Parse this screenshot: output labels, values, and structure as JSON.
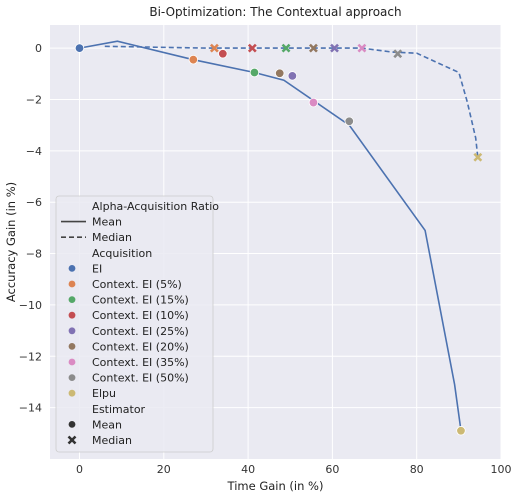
{
  "chart_data": {
    "type": "line",
    "title": "Bi-Optimization: The Contextual approach",
    "xlabel": "Time Gain (in %)",
    "ylabel": "Accuracy Gain (in %)",
    "xlim": [
      -7,
      100
    ],
    "ylim": [
      -16.0,
      0.9
    ],
    "xticks": [
      0,
      20,
      40,
      60,
      80,
      100
    ],
    "yticks": [
      0,
      -2,
      -4,
      -6,
      -8,
      -10,
      -12,
      -14
    ],
    "grid": true,
    "background": "#eaeaf2",
    "series": [
      {
        "name": "Mean",
        "style": "solid",
        "color": "#4c72b0",
        "points": [
          [
            0,
            0.0
          ],
          [
            9,
            0.27
          ],
          [
            27,
            -0.45
          ],
          [
            41.5,
            -0.95
          ],
          [
            48.5,
            -1.25
          ],
          [
            64,
            -3.0
          ],
          [
            82,
            -7.1
          ],
          [
            89,
            -13.1
          ],
          [
            90.5,
            -14.9
          ]
        ]
      },
      {
        "name": "Median",
        "style": "dashed",
        "color": "#4c72b0",
        "points": [
          [
            6,
            0.07
          ],
          [
            30,
            0.0
          ],
          [
            67,
            0.0
          ],
          [
            74,
            -0.15
          ],
          [
            80,
            -0.2
          ],
          [
            90,
            -0.95
          ],
          [
            92,
            -2.1
          ],
          [
            94,
            -3.5
          ],
          [
            94.5,
            -4.25
          ]
        ]
      }
    ],
    "scatter": [
      {
        "acquisition": "EI",
        "color": "#4c72b0",
        "mean": [
          0,
          0.0
        ],
        "median": null
      },
      {
        "acquisition": "Context. EI (5%)",
        "color": "#dd8452",
        "mean": [
          27,
          -0.45
        ],
        "median": [
          32,
          0.0
        ]
      },
      {
        "acquisition": "Context. EI (15%)",
        "color": "#55a868",
        "mean": [
          41.5,
          -0.95
        ],
        "median": [
          49,
          0.0
        ]
      },
      {
        "acquisition": "Context. EI (10%)",
        "color": "#c44e52",
        "mean": [
          34,
          -0.22
        ],
        "median": [
          41,
          0.0
        ]
      },
      {
        "acquisition": "Context. EI (25%)",
        "color": "#8172b3",
        "mean": [
          50.5,
          -1.08
        ],
        "median": [
          60.5,
          0.0
        ]
      },
      {
        "acquisition": "Context. EI (20%)",
        "color": "#937860",
        "mean": [
          47.5,
          -0.98
        ],
        "median": [
          55.5,
          0.0
        ]
      },
      {
        "acquisition": "Context. EI (35%)",
        "color": "#da8bc3",
        "mean": [
          55.5,
          -2.12
        ],
        "median": [
          67,
          0.0
        ]
      },
      {
        "acquisition": "Context. EI (50%)",
        "color": "#8c8c8c",
        "mean": [
          64,
          -2.85
        ],
        "median": [
          75.5,
          -0.22
        ]
      },
      {
        "acquisition": "Elpu",
        "color": "#ccb974",
        "mean": [
          90.5,
          -14.9
        ],
        "median": [
          94.5,
          -4.25
        ]
      }
    ],
    "legend": {
      "placement": "lower-left",
      "ratio_title": "Alpha-Acquisition Ratio",
      "ratio_items": [
        "Mean",
        "Median"
      ],
      "acq_title": "Acquisition",
      "acq_items": [
        "EI",
        "Context. EI (5%)",
        "Context. EI (15%)",
        "Context. EI (10%)",
        "Context. EI (25%)",
        "Context. EI (20%)",
        "Context. EI (35%)",
        "Context. EI (50%)",
        "Elpu"
      ],
      "est_title": "Estimator",
      "est_items": [
        "Mean",
        "Median"
      ]
    }
  }
}
